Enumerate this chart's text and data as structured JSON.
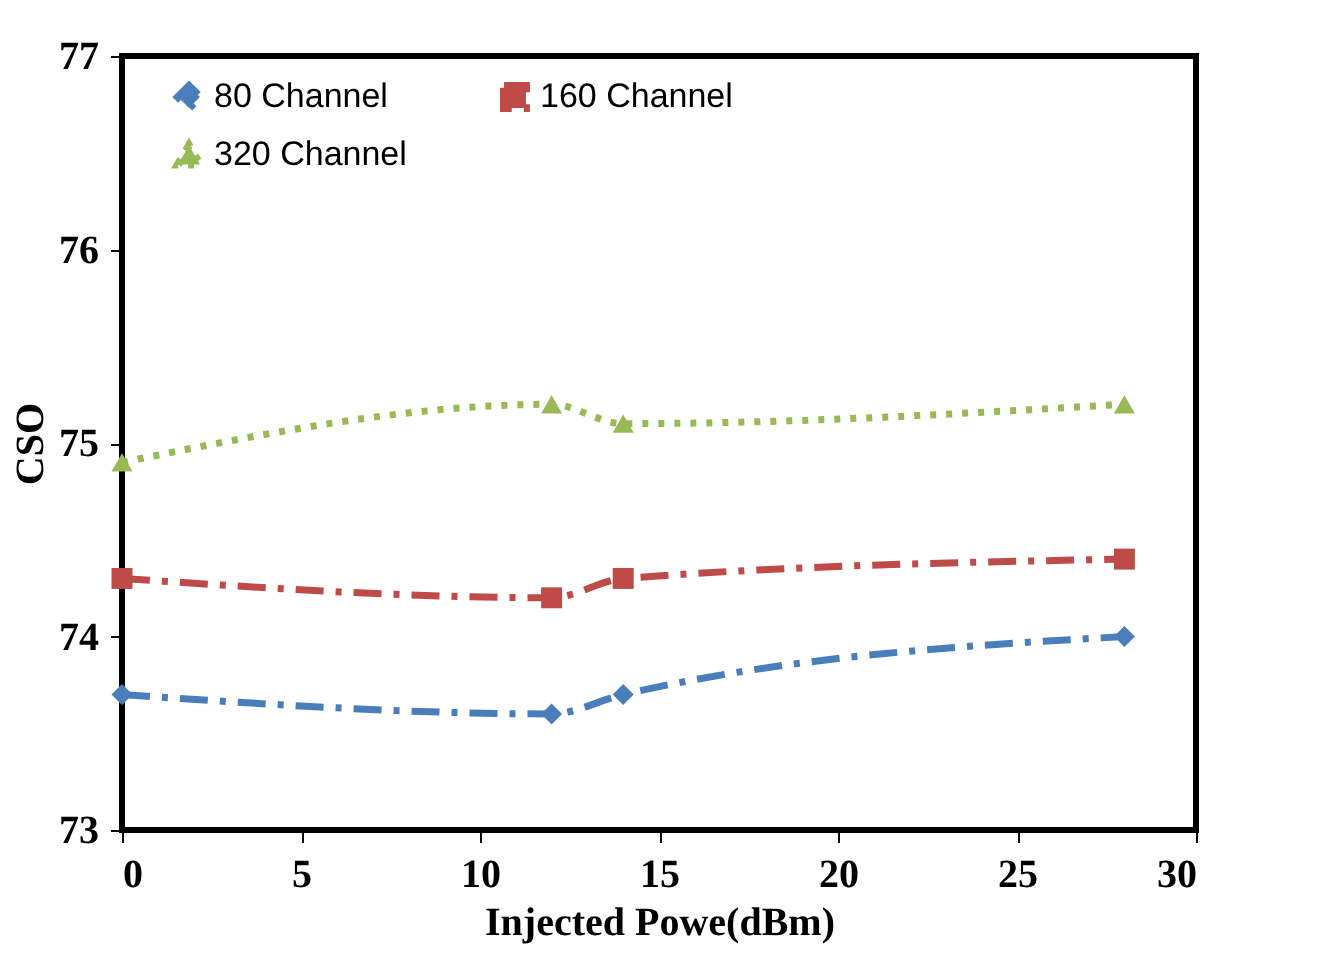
{
  "chart_data": {
    "type": "line",
    "xlabel": "Injected Powe(dBm)",
    "ylabel": "CSO",
    "xlim": [
      0,
      30
    ],
    "xticks": [
      0,
      5,
      10,
      15,
      20,
      25,
      30
    ],
    "ylim": [
      73,
      77
    ],
    "yticks": [
      73,
      74,
      75,
      76,
      77
    ],
    "grid": false,
    "legend": "top",
    "series": [
      {
        "name": "80 Channel",
        "color": "#4a7ebb",
        "marker": "diamond",
        "line_style": "dashed",
        "x": [
          0,
          12,
          14,
          28
        ],
        "values": [
          73.7,
          73.6,
          73.7,
          74.0
        ]
      },
      {
        "name": "160 Channel",
        "color": "#be4b48",
        "marker": "square",
        "line_style": "dashed",
        "x": [
          0,
          12,
          14,
          28
        ],
        "values": [
          74.3,
          74.2,
          74.3,
          74.4
        ]
      },
      {
        "name": "320 Channel",
        "color": "#98b954",
        "marker": "triangle",
        "line_style": "dotted",
        "x": [
          0,
          12,
          14,
          28
        ],
        "values": [
          74.9,
          75.2,
          75.1,
          75.2
        ]
      }
    ]
  }
}
